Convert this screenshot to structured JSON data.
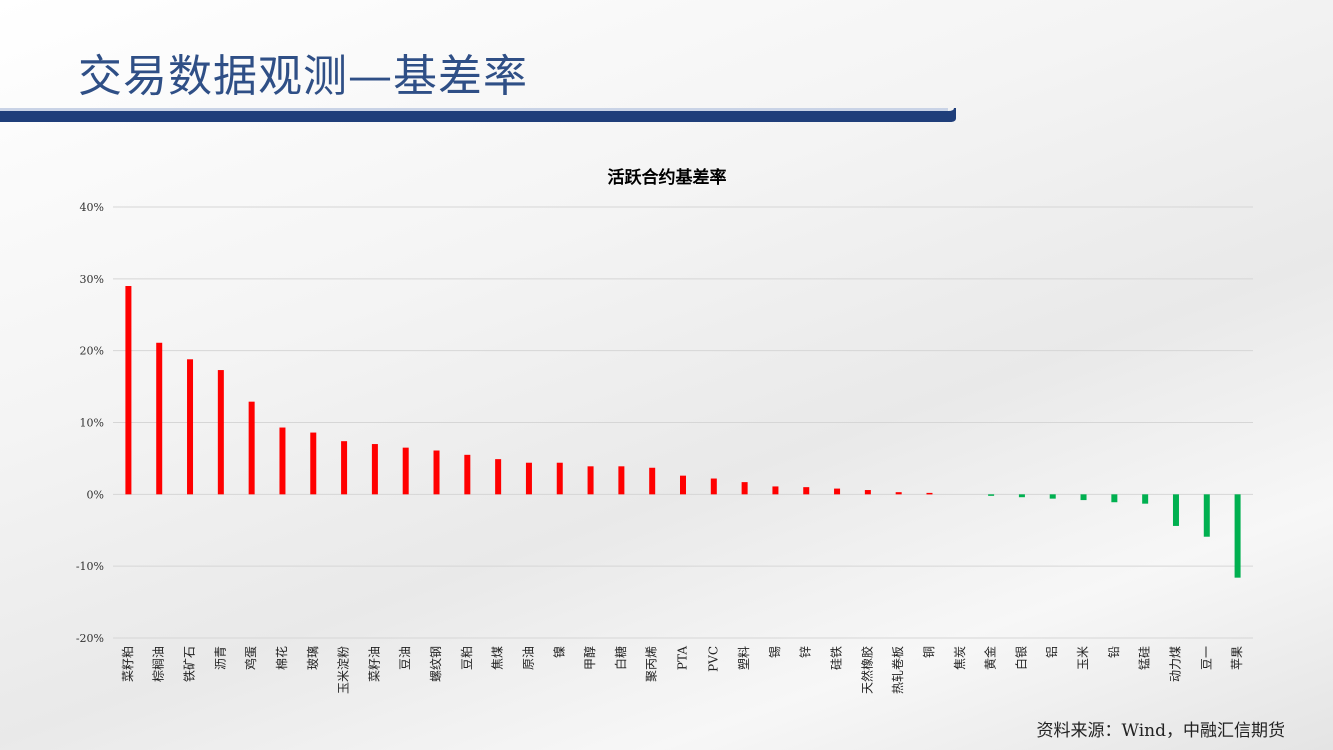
{
  "header": {
    "title": "交易数据观测—基差率"
  },
  "footer": {
    "source": "资料来源：Wind，中融汇信期货"
  },
  "colors": {
    "positive": "#ff0000",
    "negative": "#00b050",
    "title": "#2f4f86",
    "band": "#1f3e7a"
  },
  "chart_data": {
    "type": "bar",
    "title": "活跃合约基差率",
    "xlabel": "",
    "ylabel": "",
    "ylim": [
      -0.2,
      0.4
    ],
    "yticks": [
      0.4,
      0.3,
      0.2,
      0.1,
      0.0,
      -0.1,
      -0.2
    ],
    "ytick_labels": [
      "40%",
      "30%",
      "20%",
      "10%",
      "0%",
      "-10%",
      "-20%"
    ],
    "grid": true,
    "legend": "none",
    "categories": [
      "菜籽粕",
      "棕榈油",
      "铁矿石",
      "沥青",
      "鸡蛋",
      "棉花",
      "玻璃",
      "玉米淀粉",
      "菜籽油",
      "豆油",
      "螺纹钢",
      "豆粕",
      "焦煤",
      "原油",
      "镍",
      "甲醇",
      "白糖",
      "聚丙烯",
      "PTA",
      "PVC",
      "塑料",
      "锡",
      "锌",
      "硅铁",
      "天然橡胶",
      "热轧卷板",
      "铜",
      "焦炭",
      "黄金",
      "白银",
      "铝",
      "玉米",
      "铅",
      "锰硅",
      "动力煤",
      "豆一",
      "苹果"
    ],
    "values": [
      0.29,
      0.211,
      0.188,
      0.173,
      0.129,
      0.093,
      0.086,
      0.074,
      0.07,
      0.065,
      0.061,
      0.055,
      0.049,
      0.044,
      0.044,
      0.039,
      0.039,
      0.037,
      0.026,
      0.022,
      0.017,
      0.011,
      0.01,
      0.008,
      0.006,
      0.003,
      0.002,
      0.0,
      -0.002,
      -0.004,
      -0.006,
      -0.008,
      -0.011,
      -0.013,
      -0.044,
      -0.059,
      -0.116
    ]
  }
}
